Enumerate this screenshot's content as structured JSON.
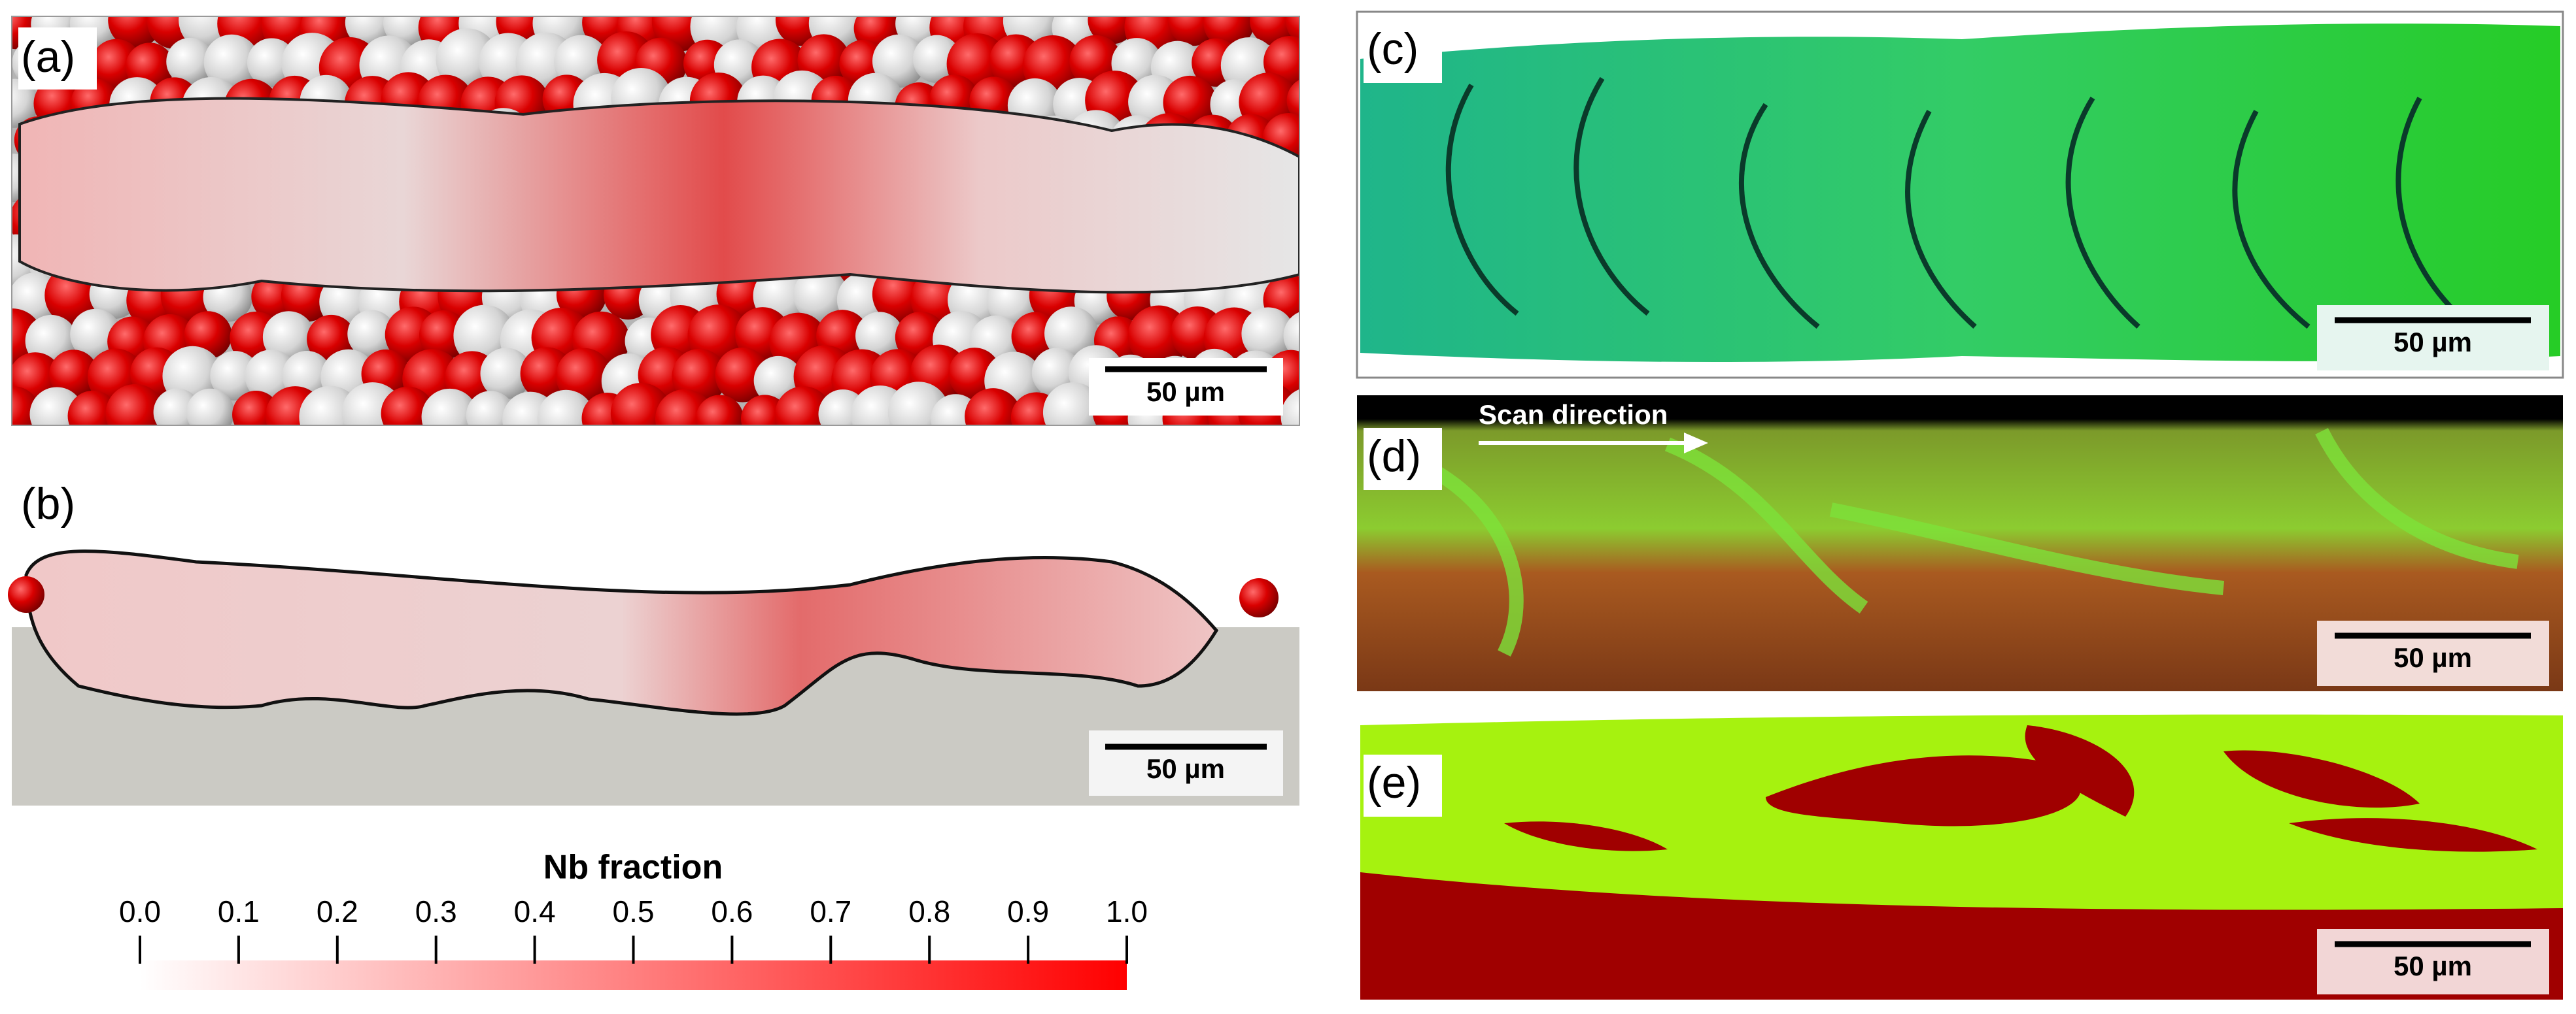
{
  "panels": [
    {
      "label": "(a)",
      "scale_bar": "50 µm"
    },
    {
      "label": "(b)",
      "scale_bar": "50 µm"
    },
    {
      "label": "(c)",
      "scale_bar": "50 µm"
    },
    {
      "label": "(d)",
      "scale_bar": "50 µm",
      "annotation": "Scan direction"
    },
    {
      "label": "(e)",
      "scale_bar": "50 µm"
    }
  ],
  "colorbar": {
    "title": "Nb fraction",
    "range": [
      0,
      1
    ],
    "color_low": "#ffffff",
    "color_high": "#ff0000",
    "ticks": [
      {
        "value": 0,
        "label": "0.0"
      },
      0.1,
      0.2,
      0.3,
      0.4,
      0.5,
      0.6,
      0.7,
      0.8,
      0.9,
      {
        "value": 1,
        "label": "1.0"
      }
    ]
  }
}
